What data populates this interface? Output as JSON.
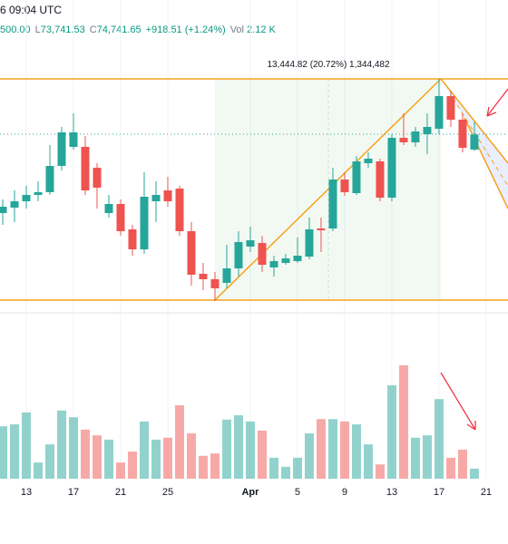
{
  "header": {
    "time": "6 09:04 UTC",
    "fragment": "500.00",
    "low_label": "L",
    "low": "73,741.53",
    "close_label": "C",
    "close": "74,741.65",
    "change": "+918.51 (+1.24%)",
    "vol_label": "Vol",
    "vol": "2.12 K"
  },
  "annotation": "13,444.82 (20.72%) 1,344,482",
  "chart_data": {
    "type": "candlestick",
    "up_color": "#26a69a",
    "down_color": "#ef5350",
    "xlim": [
      -0.23,
      42.85
    ],
    "xticks": [
      {
        "value": 2,
        "label": "13"
      },
      {
        "value": 6,
        "label": "17"
      },
      {
        "value": 10,
        "label": "21"
      },
      {
        "value": 14,
        "label": "25"
      },
      {
        "value": 21,
        "label": "Apr"
      },
      {
        "value": 25,
        "label": "5"
      },
      {
        "value": 29,
        "label": "9"
      },
      {
        "value": 33,
        "label": "13"
      },
      {
        "value": 37,
        "label": "17"
      },
      {
        "value": 41,
        "label": "21"
      }
    ],
    "ylim": [
      63925,
      82900
    ],
    "y2lim": [
      0,
      34.8
    ],
    "open": [
      69975,
      70305,
      70690,
      71075,
      71240,
      72835,
      73990,
      73990,
      72725,
      69975,
      70525,
      68985,
      67775,
      70690,
      71350,
      71460,
      68875,
      66290,
      65960,
      65740,
      66620,
      67940,
      68160,
      66675,
      66950,
      67060,
      67335,
      69040,
      69040,
      72010,
      71185,
      73000,
      73110,
      70910,
      74540,
      74265,
      74760,
      75090,
      77070,
      75640,
      73823.14
    ],
    "high": [
      70800,
      71350,
      71625,
      71900,
      74100,
      75200,
      76025,
      74650,
      73000,
      71075,
      70800,
      69260,
      72450,
      71900,
      72175,
      71625,
      69425,
      66950,
      66400,
      68050,
      68875,
      69150,
      68600,
      67390,
      67500,
      68490,
      69700,
      69700,
      72725,
      72450,
      73440,
      73660,
      73275,
      74760,
      76025,
      75200,
      76025,
      78115,
      77400,
      76025,
      75500
    ],
    "low": [
      69260,
      69425,
      70250,
      70690,
      71075,
      72560,
      73825,
      71075,
      70250,
      69700,
      68600,
      67390,
      67500,
      69425,
      70360,
      68600,
      65575,
      65300,
      64640,
      65410,
      66125,
      67610,
      66400,
      66125,
      66840,
      66950,
      67170,
      67610,
      68875,
      71020,
      71075,
      72725,
      70690,
      70690,
      74100,
      73990,
      73550,
      74760,
      75200,
      73660,
      73741.53
    ],
    "close": [
      70360,
      70690,
      71075,
      71240,
      72835,
      74870,
      74870,
      71350,
      71515,
      70525,
      68875,
      67775,
      70965,
      71075,
      70690,
      68875,
      66235,
      65960,
      65410,
      66620,
      68215,
      68325,
      66840,
      67060,
      67225,
      67390,
      68985,
      68930,
      72010,
      71240,
      73110,
      73275,
      70910,
      74540,
      74265,
      74925,
      75200,
      77070,
      75640,
      73935,
      74741.65
    ],
    "volume": [
      11.0,
      11.4,
      13.9,
      3.4,
      7.2,
      14.3,
      12.9,
      10.3,
      9.1,
      8.2,
      3.4,
      5.7,
      12.0,
      8.2,
      8.6,
      15.4,
      9.5,
      4.8,
      5.3,
      12.4,
      13.3,
      12.0,
      10.1,
      4.4,
      2.5,
      4.4,
      9.5,
      12.5,
      12.5,
      12.0,
      11.4,
      7.2,
      3.0,
      19.6,
      23.8,
      8.6,
      9.1,
      16.7,
      4.4,
      6.1,
      2.12
    ]
  }
}
